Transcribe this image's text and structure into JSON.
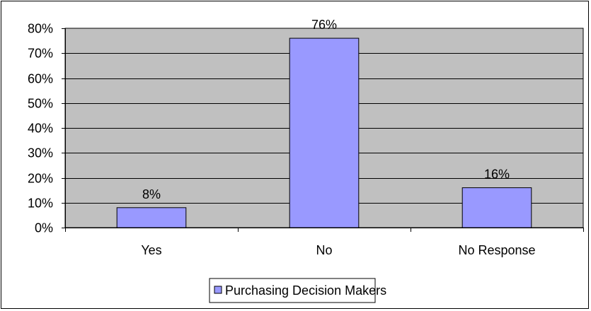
{
  "chart_data": {
    "type": "bar",
    "categories": [
      "Yes",
      "No",
      "No Response"
    ],
    "series": [
      {
        "name": "Purchasing Decision Makers",
        "values": [
          8,
          76,
          16
        ]
      }
    ],
    "data_labels": [
      "8%",
      "76%",
      "16%"
    ],
    "y_ticks": [
      "0%",
      "10%",
      "20%",
      "30%",
      "40%",
      "50%",
      "60%",
      "70%",
      "80%"
    ],
    "ylim": [
      0,
      80
    ],
    "y_step": 10,
    "title": "",
    "xlabel": "",
    "ylabel": "",
    "grid": true,
    "legend_position": "bottom",
    "colors": {
      "bar_fill": "#9999FF",
      "plot_background": "#C0C0C0",
      "gridline": "#000000",
      "border": "#000000"
    }
  }
}
